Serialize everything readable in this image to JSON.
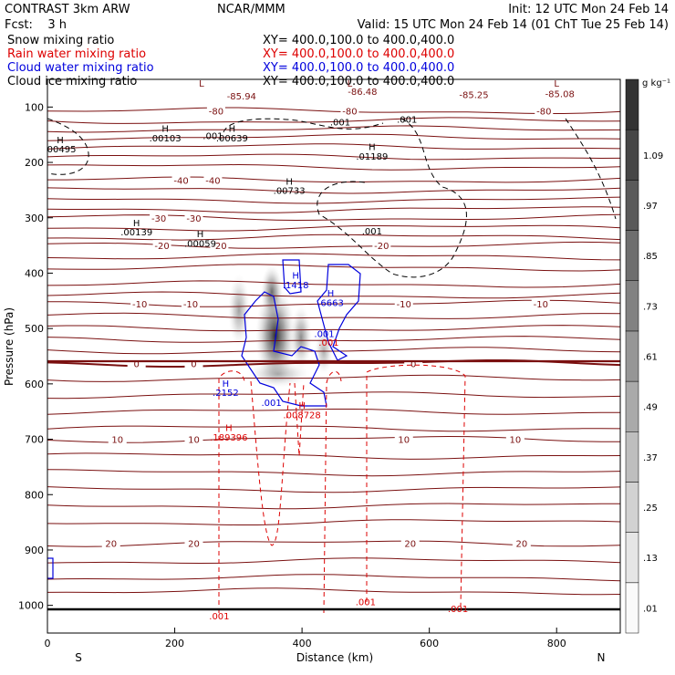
{
  "header": {
    "left_line1": "CONTRAST  3km ARW",
    "center_line1": "NCAR/MMM",
    "right_line1": "Init: 12 UTC Mon 24 Feb 14",
    "left_line2": "Fcst:    3 h",
    "right_line2": "Valid: 15 UTC Mon 24 Feb 14 (01 ChT Tue 25 Feb 14)"
  },
  "fields": [
    {
      "label": "Snow mixing ratio",
      "xy": "XY= 400.0,100.0 to 400.0,400.0",
      "color": "#000000"
    },
    {
      "label": "Rain water mixing ratio",
      "xy": "XY= 400.0,100.0 to 400.0,400.0",
      "color": "#dd0000"
    },
    {
      "label": "Cloud water mixing ratio",
      "xy": "XY= 400.0,100.0 to 400.0,400.0",
      "color": "#0000dd"
    },
    {
      "label": "Cloud ice mixing ratio",
      "xy": "XY= 400.0,100.0 to 400.0,400.0",
      "color": "#000000"
    }
  ],
  "chart_data": {
    "type": "heatmap",
    "xlabel": "Distance (km)",
    "ylabel": "Pressure (hPa)",
    "x_start_label": "S",
    "x_end_label": "N",
    "xlim": [
      0,
      900
    ],
    "ylim": [
      1050,
      50
    ],
    "xticks": [
      0,
      200,
      400,
      600,
      800
    ],
    "yticks": [
      100,
      200,
      300,
      400,
      500,
      600,
      700,
      800,
      900,
      1000
    ],
    "colorbar": {
      "unit": "g kg⁻¹",
      "ticks": [
        ".01",
        ".13",
        ".25",
        ".37",
        ".49",
        ".61",
        ".73",
        ".85",
        ".97",
        "1.09"
      ]
    },
    "snow_max": {
      "x": 360,
      "p": 510
    },
    "temperature_contours": {
      "color": "#7a1010",
      "levels": [
        {
          "p": 107,
          "labels": [
            {
              "x": 265,
              "text": "-80"
            },
            {
              "x": 475,
              "text": "-80"
            },
            {
              "x": 780,
              "text": "-80"
            }
          ]
        },
        {
          "p": 232,
          "labels": [
            {
              "x": 210,
              "text": "-40"
            },
            {
              "x": 260,
              "text": "-40"
            }
          ]
        },
        {
          "p": 300,
          "labels": [
            {
              "x": 175,
              "text": "-30"
            },
            {
              "x": 230,
              "text": "-30"
            }
          ]
        },
        {
          "p": 350,
          "labels": [
            {
              "x": 180,
              "text": "-20"
            },
            {
              "x": 270,
              "text": "-20"
            },
            {
              "x": 525,
              "text": "-20"
            }
          ]
        },
        {
          "p": 455,
          "labels": [
            {
              "x": 145,
              "text": "-10"
            },
            {
              "x": 225,
              "text": "-10"
            },
            {
              "x": 560,
              "text": "-10"
            },
            {
              "x": 775,
              "text": "-10"
            }
          ]
        },
        {
          "p": 563,
          "labels": [
            {
              "x": 140,
              "text": "0"
            },
            {
              "x": 230,
              "text": "0"
            },
            {
              "x": 575,
              "text": "0"
            }
          ],
          "bold": true
        },
        {
          "p": 700,
          "labels": [
            {
              "x": 110,
              "text": "10"
            },
            {
              "x": 230,
              "text": "10"
            },
            {
              "x": 560,
              "text": "10"
            },
            {
              "x": 735,
              "text": "10"
            }
          ]
        },
        {
          "p": 888,
          "labels": [
            {
              "x": 100,
              "text": "20"
            },
            {
              "x": 230,
              "text": "20"
            },
            {
              "x": 570,
              "text": "20"
            },
            {
              "x": 745,
              "text": "20"
            }
          ]
        }
      ]
    },
    "extrema_labels": [
      {
        "x": 242,
        "p": 63,
        "kind": "L",
        "color": "#7a1010"
      },
      {
        "x": 475,
        "p": 63,
        "kind": "L",
        "color": "#7a1010"
      },
      {
        "x": 800,
        "p": 63,
        "kind": "L",
        "color": "#7a1010"
      },
      {
        "x": 305,
        "p": 86,
        "kind": "-85.94",
        "color": "#7a1010"
      },
      {
        "x": 495,
        "p": 78,
        "kind": "-86.48",
        "color": "#7a1010"
      },
      {
        "x": 670,
        "p": 84,
        "kind": "-85.25",
        "color": "#7a1010"
      },
      {
        "x": 805,
        "p": 82,
        "kind": "-85.08",
        "color": "#7a1010"
      },
      {
        "x": 185,
        "p": 145,
        "kind": "H",
        "color": "#000000"
      },
      {
        "x": 185,
        "p": 162,
        "kind": ".00103",
        "color": "#000000"
      },
      {
        "x": 290,
        "p": 145,
        "kind": "H",
        "color": "#000000"
      },
      {
        "x": 290,
        "p": 162,
        "kind": ".00639",
        "color": "#000000"
      },
      {
        "x": 20,
        "p": 165,
        "kind": "H",
        "color": "#000000"
      },
      {
        "x": 20,
        "p": 182,
        "kind": ".00495",
        "color": "#000000"
      },
      {
        "x": 510,
        "p": 178,
        "kind": "H",
        "color": "#000000"
      },
      {
        "x": 510,
        "p": 195,
        "kind": ".01189",
        "color": "#000000"
      },
      {
        "x": 380,
        "p": 240,
        "kind": "H",
        "color": "#000000"
      },
      {
        "x": 380,
        "p": 257,
        "kind": ".00733",
        "color": "#000000"
      },
      {
        "x": 140,
        "p": 315,
        "kind": "H",
        "color": "#000000"
      },
      {
        "x": 140,
        "p": 332,
        "kind": ".00139",
        "color": "#000000"
      },
      {
        "x": 240,
        "p": 335,
        "kind": "H",
        "color": "#000000"
      },
      {
        "x": 240,
        "p": 352,
        "kind": ".00059",
        "color": "#000000"
      },
      {
        "x": 390,
        "p": 410,
        "kind": "H",
        "color": "#0000dd"
      },
      {
        "x": 390,
        "p": 427,
        "kind": ".1418",
        "color": "#0000dd"
      },
      {
        "x": 445,
        "p": 442,
        "kind": "H",
        "color": "#0000dd"
      },
      {
        "x": 445,
        "p": 459,
        "kind": ".6663",
        "color": "#0000dd"
      },
      {
        "x": 280,
        "p": 605,
        "kind": "H",
        "color": "#0000dd"
      },
      {
        "x": 280,
        "p": 622,
        "kind": ".2152",
        "color": "#0000dd"
      },
      {
        "x": 400,
        "p": 645,
        "kind": "H",
        "color": "#dd0000"
      },
      {
        "x": 400,
        "p": 662,
        "kind": ".008728",
        "color": "#dd0000"
      },
      {
        "x": 285,
        "p": 685,
        "kind": "H",
        "color": "#dd0000"
      },
      {
        "x": 285,
        "p": 702,
        "kind": ".189396",
        "color": "#dd0000"
      }
    ],
    "contour_value_labels": [
      {
        "x": 260,
        "p": 158,
        "text": ".001",
        "color": "#000000"
      },
      {
        "x": 460,
        "p": 133,
        "text": ".001",
        "color": "#000000"
      },
      {
        "x": 565,
        "p": 128,
        "text": ".001",
        "color": "#000000"
      },
      {
        "x": 510,
        "p": 330,
        "text": ".001",
        "color": "#000000"
      },
      {
        "x": 435,
        "p": 515,
        "text": ".001",
        "color": "#0000dd"
      },
      {
        "x": 352,
        "p": 640,
        "text": ".001",
        "color": "#0000dd"
      },
      {
        "x": 442,
        "p": 531,
        "text": ".001",
        "color": "#dd0000"
      },
      {
        "x": 270,
        "p": 1025,
        "text": ".001",
        "color": "#dd0000"
      },
      {
        "x": 500,
        "p": 1000,
        "text": ".001",
        "color": "#dd0000"
      },
      {
        "x": 645,
        "p": 1012,
        "text": ".001",
        "color": "#dd0000"
      }
    ]
  }
}
